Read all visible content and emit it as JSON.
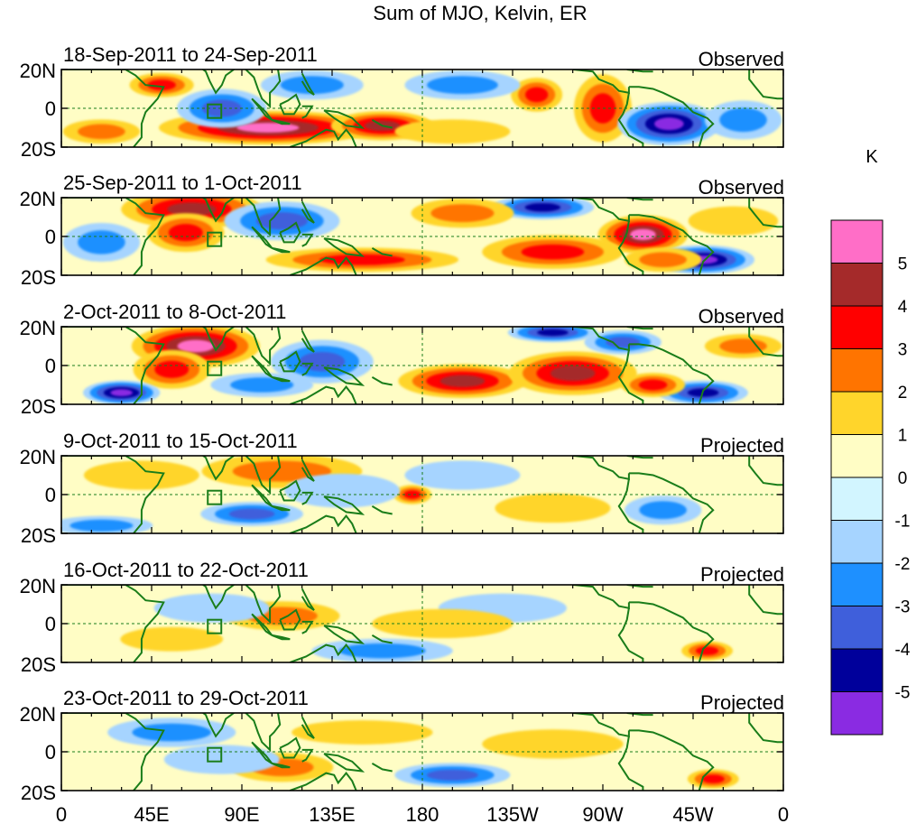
{
  "title": "Sum of MJO, Kelvin, ER",
  "y_ticks": [
    "20N",
    "0",
    "20S"
  ],
  "x_ticks": [
    "0",
    "45E",
    "90E",
    "135E",
    "180",
    "135W",
    "90W",
    "45W",
    "0"
  ],
  "panels": [
    {
      "date_range": "18-Sep-2011 to 24-Sep-2011",
      "status": "Observed",
      "kind": "observed",
      "blobs": [
        {
          "lon": 103,
          "lat": -10,
          "rx": 34,
          "ry": 7,
          "value": 5
        },
        {
          "lon": 160,
          "lat": -9,
          "rx": 16,
          "ry": 6,
          "value": 4
        },
        {
          "lon": 237,
          "lat": 7,
          "rx": 8,
          "ry": 7,
          "value": 3
        },
        {
          "lon": 270,
          "lat": 0,
          "rx": 9,
          "ry": 14,
          "value": 3
        },
        {
          "lon": 50,
          "lat": 12,
          "rx": 10,
          "ry": 5,
          "value": 3
        },
        {
          "lon": 303,
          "lat": -8,
          "rx": 16,
          "ry": 9,
          "value": -5
        },
        {
          "lon": 80,
          "lat": 0,
          "rx": 14,
          "ry": 8,
          "value": -3
        },
        {
          "lon": 200,
          "lat": 12,
          "rx": 18,
          "ry": 6,
          "value": -2
        },
        {
          "lon": 125,
          "lat": 12,
          "rx": 16,
          "ry": 6,
          "value": -2
        },
        {
          "lon": 340,
          "lat": -6,
          "rx": 12,
          "ry": 8,
          "value": -2
        },
        {
          "lon": 20,
          "lat": -12,
          "rx": 12,
          "ry": 5,
          "value": 2
        },
        {
          "lon": 195,
          "lat": -12,
          "rx": 18,
          "ry": 5,
          "value": 1
        }
      ]
    },
    {
      "date_range": "25-Sep-2011 to 1-Oct-2011",
      "status": "Observed",
      "kind": "observed",
      "blobs": [
        {
          "lon": 65,
          "lat": 14,
          "rx": 22,
          "ry": 8,
          "value": 4
        },
        {
          "lon": 62,
          "lat": 2,
          "rx": 12,
          "ry": 8,
          "value": 3
        },
        {
          "lon": 290,
          "lat": 1,
          "rx": 14,
          "ry": 8,
          "value": 5
        },
        {
          "lon": 245,
          "lat": -8,
          "rx": 22,
          "ry": 7,
          "value": 3
        },
        {
          "lon": 150,
          "lat": -12,
          "rx": 30,
          "ry": 5,
          "value": 3
        },
        {
          "lon": 320,
          "lat": -12,
          "rx": 16,
          "ry": 6,
          "value": -5
        },
        {
          "lon": 110,
          "lat": 8,
          "rx": 18,
          "ry": 8,
          "value": -3
        },
        {
          "lon": 240,
          "lat": 15,
          "rx": 16,
          "ry": 5,
          "value": -4
        },
        {
          "lon": 20,
          "lat": -3,
          "rx": 12,
          "ry": 8,
          "value": -2
        },
        {
          "lon": 300,
          "lat": -12,
          "rx": 12,
          "ry": 5,
          "value": 2
        },
        {
          "lon": 200,
          "lat": 12,
          "rx": 16,
          "ry": 6,
          "value": 2
        },
        {
          "lon": 335,
          "lat": 8,
          "rx": 14,
          "ry": 6,
          "value": 1
        }
      ]
    },
    {
      "date_range": "2-Oct-2011 to 8-Oct-2011",
      "status": "Observed",
      "kind": "observed",
      "blobs": [
        {
          "lon": 67,
          "lat": 10,
          "rx": 20,
          "ry": 9,
          "value": 5
        },
        {
          "lon": 55,
          "lat": -2,
          "rx": 12,
          "ry": 8,
          "value": 3
        },
        {
          "lon": 200,
          "lat": -8,
          "rx": 20,
          "ry": 7,
          "value": 4
        },
        {
          "lon": 255,
          "lat": -4,
          "rx": 20,
          "ry": 9,
          "value": 4
        },
        {
          "lon": 30,
          "lat": -14,
          "rx": 12,
          "ry": 5,
          "value": -5
        },
        {
          "lon": 320,
          "lat": -14,
          "rx": 14,
          "ry": 5,
          "value": -4
        },
        {
          "lon": 245,
          "lat": 17,
          "rx": 14,
          "ry": 4,
          "value": -4
        },
        {
          "lon": 130,
          "lat": 2,
          "rx": 16,
          "ry": 9,
          "value": -3
        },
        {
          "lon": 100,
          "lat": -10,
          "rx": 16,
          "ry": 5,
          "value": -2
        },
        {
          "lon": 280,
          "lat": 12,
          "rx": 12,
          "ry": 5,
          "value": -3
        },
        {
          "lon": 295,
          "lat": -10,
          "rx": 10,
          "ry": 5,
          "value": 3
        },
        {
          "lon": 340,
          "lat": 10,
          "rx": 12,
          "ry": 5,
          "value": 2
        }
      ]
    },
    {
      "date_range": "9-Oct-2011 to 15-Oct-2011",
      "status": "Projected",
      "kind": "projected",
      "blobs": [
        {
          "lon": 110,
          "lat": 12,
          "rx": 25,
          "ry": 7,
          "value": 2
        },
        {
          "lon": 175,
          "lat": 0,
          "rx": 6,
          "ry": 4,
          "value": 3
        },
        {
          "lon": 245,
          "lat": -7,
          "rx": 18,
          "ry": 6,
          "value": 1
        },
        {
          "lon": 95,
          "lat": -10,
          "rx": 16,
          "ry": 5,
          "value": -3
        },
        {
          "lon": 20,
          "lat": -16,
          "rx": 16,
          "ry": 4,
          "value": -2
        },
        {
          "lon": 300,
          "lat": -8,
          "rx": 12,
          "ry": 6,
          "value": -2
        },
        {
          "lon": 40,
          "lat": 10,
          "rx": 18,
          "ry": 6,
          "value": 1
        },
        {
          "lon": 200,
          "lat": 10,
          "rx": 18,
          "ry": 6,
          "value": -1
        },
        {
          "lon": 140,
          "lat": 2,
          "rx": 18,
          "ry": 7,
          "value": -1
        }
      ]
    },
    {
      "date_range": "16-Oct-2011 to 22-Oct-2011",
      "status": "Projected",
      "kind": "projected",
      "blobs": [
        {
          "lon": 322,
          "lat": -14,
          "rx": 8,
          "ry": 4,
          "value": 3
        },
        {
          "lon": 110,
          "lat": 4,
          "rx": 18,
          "ry": 6,
          "value": 2
        },
        {
          "lon": 55,
          "lat": -8,
          "rx": 16,
          "ry": 5,
          "value": 1
        },
        {
          "lon": 160,
          "lat": -14,
          "rx": 22,
          "ry": 5,
          "value": -2
        },
        {
          "lon": 75,
          "lat": 8,
          "rx": 18,
          "ry": 6,
          "value": -1
        },
        {
          "lon": 220,
          "lat": 8,
          "rx": 20,
          "ry": 6,
          "value": -1
        },
        {
          "lon": 190,
          "lat": 0,
          "rx": 22,
          "ry": 6,
          "value": 1
        }
      ]
    },
    {
      "date_range": "23-Oct-2011 to 29-Oct-2011",
      "status": "Projected",
      "kind": "projected",
      "blobs": [
        {
          "lon": 325,
          "lat": -14,
          "rx": 8,
          "ry": 4,
          "value": 3
        },
        {
          "lon": 110,
          "lat": -8,
          "rx": 16,
          "ry": 6,
          "value": 2
        },
        {
          "lon": 55,
          "lat": 10,
          "rx": 20,
          "ry": 6,
          "value": -2
        },
        {
          "lon": 195,
          "lat": -12,
          "rx": 18,
          "ry": 5,
          "value": -3
        },
        {
          "lon": 80,
          "lat": -4,
          "rx": 18,
          "ry": 6,
          "value": -1
        },
        {
          "lon": 150,
          "lat": 10,
          "rx": 22,
          "ry": 5,
          "value": 1
        },
        {
          "lon": 245,
          "lat": 4,
          "rx": 22,
          "ry": 6,
          "value": 1
        }
      ]
    }
  ],
  "legend": {
    "unit": "K",
    "labels": [
      "5",
      "4",
      "3",
      "2",
      "1",
      "0",
      "-1",
      "-2",
      "-3",
      "-4",
      "-5"
    ],
    "colors": [
      "#ff6ec7",
      "#a52a2a",
      "#ff0000",
      "#ff7400",
      "#ffd52b",
      "#fffdc5",
      "#d2f5ff",
      "#a6d4ff",
      "#1e90ff",
      "#3f5fdb",
      "#00009b",
      "#8a2be2"
    ]
  },
  "colors": {
    "coast": "#1a7d1a",
    "observed_base": "#fffdc5",
    "projected_base": "#fffdc5"
  }
}
